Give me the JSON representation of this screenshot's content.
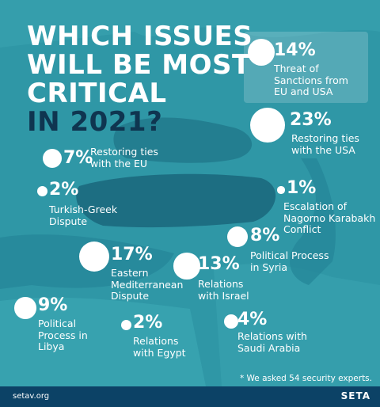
{
  "chart_data": {
    "type": "bubble-map",
    "title": [
      "WHICH ISSUES",
      "WILL BE MOST",
      "CRITICAL",
      "IN 2021?"
    ],
    "categories": [
      "Threat of Sanctions from EU and USA",
      "Restoring ties with the USA",
      "Restoring ties with the EU",
      "Turkish-Greek Dispute",
      "Escalation of Nagorno Karabakh Conflict",
      "Political Process in Syria",
      "Eastern Mediterranean Dispute",
      "Relations with Israel",
      "Political Process in Libya",
      "Relations with Egypt",
      "Relations with Saudi Arabia"
    ],
    "values": [
      14,
      23,
      7,
      2,
      1,
      8,
      17,
      13,
      9,
      2,
      4
    ],
    "value_labels": [
      "14%",
      "23%",
      "7%",
      "2%",
      "1%",
      "8%",
      "17%",
      "13%",
      "9%",
      "2%",
      "4%"
    ],
    "color": "#ffffff",
    "note": "* We asked 54 security experts.",
    "source": "setav.org",
    "brand": "SETA"
  }
}
